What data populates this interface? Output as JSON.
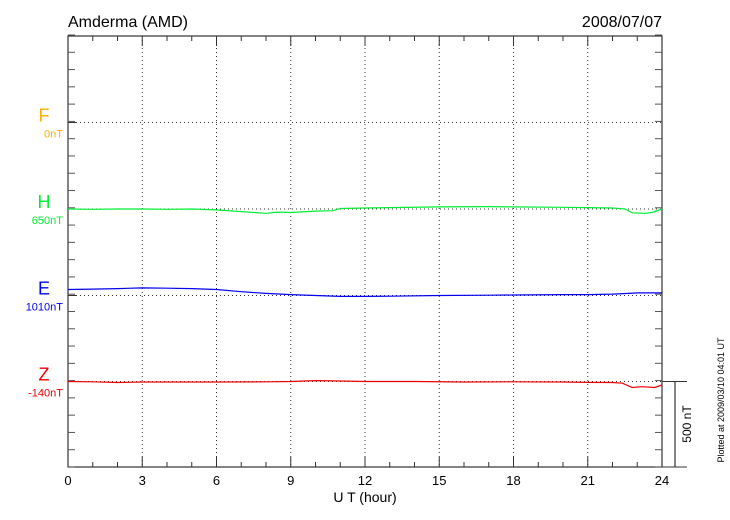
{
  "header": {
    "station": "Amderma (AMD)",
    "date": "2008/07/07"
  },
  "footer": {
    "plotted": "Plotted at 2009/03/10 04:01 UT"
  },
  "chart_data": {
    "type": "line",
    "title": "Amderma (AMD)",
    "xlabel": "U T (hour)",
    "xlim": [
      0,
      24
    ],
    "xticks": [
      "0",
      "3",
      "6",
      "9",
      "12",
      "15",
      "18",
      "21",
      "24"
    ],
    "grid": true,
    "scale_bar": "500 nT",
    "series": [
      {
        "name": "F",
        "baseline_label": "0nT",
        "color": "#ffb000",
        "x": [],
        "values": []
      },
      {
        "name": "H",
        "baseline_label": "650nT",
        "color": "#00ee33",
        "x": [
          0,
          1,
          2,
          3,
          4,
          5,
          6,
          7,
          8,
          8.5,
          9,
          10,
          10.7,
          11,
          12,
          13,
          15,
          17,
          18,
          20,
          21,
          22,
          22.5,
          22.8,
          23.3,
          23.6,
          24
        ],
        "values": [
          0,
          -2,
          0,
          0,
          -2,
          0,
          -5,
          -15,
          -25,
          -18,
          -20,
          -12,
          -10,
          3,
          6,
          8,
          12,
          14,
          12,
          10,
          8,
          6,
          0,
          -22,
          -25,
          -20,
          0
        ]
      },
      {
        "name": "E",
        "baseline_label": "1010nT",
        "color": "#0000ee",
        "x": [
          0,
          1,
          2,
          3,
          4,
          5,
          6,
          7,
          8,
          9,
          10,
          11,
          12,
          13,
          15,
          17,
          18,
          20,
          21,
          22,
          23,
          24
        ],
        "values": [
          35,
          37,
          40,
          44,
          42,
          40,
          35,
          22,
          12,
          5,
          0,
          -5,
          -5,
          -4,
          0,
          2,
          3,
          5,
          5,
          8,
          15,
          15
        ]
      },
      {
        "name": "Z",
        "baseline_label": "-140nT",
        "color": "#ee0000",
        "x": [
          0,
          1,
          2,
          3,
          4,
          6,
          8,
          9,
          10,
          11,
          12,
          14,
          16,
          18,
          20,
          21,
          22,
          22.4,
          22.8,
          23.2,
          23.7,
          24
        ],
        "values": [
          0,
          -2,
          -6,
          -3,
          -3,
          -3,
          -2,
          0,
          5,
          3,
          0,
          0,
          -3,
          -2,
          -3,
          -5,
          -6,
          -10,
          -35,
          -30,
          -35,
          -20
        ]
      }
    ]
  }
}
